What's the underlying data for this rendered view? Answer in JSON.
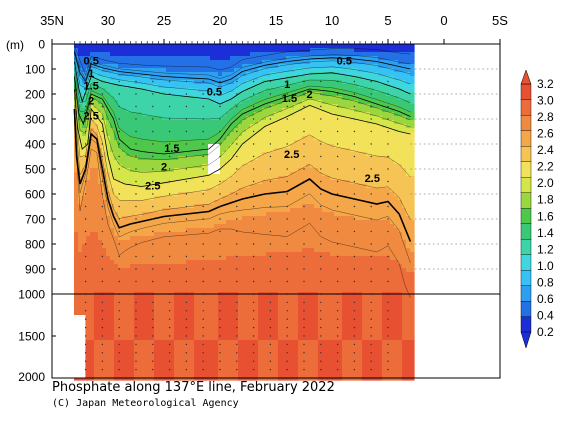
{
  "title": "Phosphate along 137°E line, February 2022",
  "credit": "(C) Japan Meteorological Agency",
  "chart_data": {
    "type": "heatmap",
    "depth_unit_label": "(m)",
    "latitude_ticks": [
      "35N",
      "30",
      "25",
      "20",
      "15",
      "10",
      "5",
      "0",
      "5S"
    ],
    "latitude_range": [
      35,
      -5
    ],
    "latitude_data_extent": [
      33,
      3
    ],
    "depth_ticks_upper": [
      "0",
      "100",
      "200",
      "300",
      "400",
      "500",
      "600",
      "700",
      "800",
      "900",
      "1000"
    ],
    "depth_ticks_lower": [
      "1500",
      "2000"
    ],
    "depth_range": [
      0,
      2000
    ],
    "depth_axis_break_at": 1000,
    "colorbar_labels": [
      "0.2",
      "0.4",
      "0.6",
      "0.8",
      "1.0",
      "1.2",
      "1.4",
      "1.6",
      "1.8",
      "2.0",
      "2.2",
      "2.4",
      "2.6",
      "2.8",
      "3.0",
      "3.2"
    ],
    "colorbar_colors": [
      "#1b2ed8",
      "#2470e6",
      "#2d9ff0",
      "#36c2f4",
      "#3fd6e0",
      "#3cd4a8",
      "#38c878",
      "#4ec84a",
      "#9ad63e",
      "#d4e64a",
      "#f2e25a",
      "#f6c454",
      "#f4a648",
      "#f08a40",
      "#ec6c3a",
      "#e85032"
    ],
    "contour_labels": [
      {
        "text": "0.5",
        "lat": 31.5,
        "depth": 65
      },
      {
        "text": "1",
        "lat": 31.5,
        "depth": 115
      },
      {
        "text": "1.5",
        "lat": 31.5,
        "depth": 165
      },
      {
        "text": "2",
        "lat": 31.5,
        "depth": 225
      },
      {
        "text": "2.5",
        "lat": 31.5,
        "depth": 285
      },
      {
        "text": "0.5",
        "lat": 20.5,
        "depth": 190
      },
      {
        "text": "1.5",
        "lat": 24.3,
        "depth": 415
      },
      {
        "text": "2",
        "lat": 25,
        "depth": 490
      },
      {
        "text": "2.5",
        "lat": 26,
        "depth": 565
      },
      {
        "text": "1",
        "lat": 14,
        "depth": 160
      },
      {
        "text": "1.5",
        "lat": 13.8,
        "depth": 215
      },
      {
        "text": "2",
        "lat": 12,
        "depth": 200
      },
      {
        "text": "2.5",
        "lat": 13.6,
        "depth": 440
      },
      {
        "text": "0.5",
        "lat": 8.9,
        "depth": 65
      },
      {
        "text": "2.5",
        "lat": 6.4,
        "depth": 535
      }
    ],
    "contours": [
      {
        "level": 0.5,
        "points": [
          [
            33,
            30
          ],
          [
            32.5,
            115
          ],
          [
            32,
            150
          ],
          [
            31.5,
            80
          ],
          [
            30.5,
            95
          ],
          [
            29,
            110
          ],
          [
            27,
            120
          ],
          [
            25,
            130
          ],
          [
            23,
            135
          ],
          [
            21,
            140
          ],
          [
            20,
            155
          ],
          [
            19,
            140
          ],
          [
            18,
            110
          ],
          [
            16,
            85
          ],
          [
            14,
            70
          ],
          [
            12,
            60
          ],
          [
            10,
            55
          ],
          [
            8,
            60
          ],
          [
            6,
            70
          ],
          [
            4,
            90
          ],
          [
            3,
            100
          ]
        ]
      },
      {
        "level": 1.0,
        "points": [
          [
            33,
            70
          ],
          [
            32.6,
            180
          ],
          [
            32.3,
            230
          ],
          [
            31.5,
            130
          ],
          [
            30.5,
            150
          ],
          [
            29,
            165
          ],
          [
            27,
            180
          ],
          [
            25,
            200
          ],
          [
            23,
            210
          ],
          [
            21,
            220
          ],
          [
            20,
            240
          ],
          [
            19,
            220
          ],
          [
            18,
            190
          ],
          [
            16,
            150
          ],
          [
            14,
            135
          ],
          [
            12,
            120
          ],
          [
            10,
            115
          ],
          [
            8,
            130
          ],
          [
            6,
            150
          ],
          [
            4,
            180
          ],
          [
            3,
            200
          ]
        ]
      },
      {
        "level": 1.5,
        "points": [
          [
            33,
            130
          ],
          [
            32.6,
            280
          ],
          [
            32.2,
            320
          ],
          [
            31.5,
            200
          ],
          [
            30.5,
            220
          ],
          [
            29.5,
            300
          ],
          [
            29,
            380
          ],
          [
            28,
            420
          ],
          [
            27,
            430
          ],
          [
            25,
            440
          ],
          [
            23,
            430
          ],
          [
            21,
            420
          ],
          [
            20,
            380
          ],
          [
            19,
            320
          ],
          [
            18,
            280
          ],
          [
            16,
            240
          ],
          [
            14,
            210
          ],
          [
            12,
            180
          ],
          [
            10,
            190
          ],
          [
            8,
            210
          ],
          [
            6,
            240
          ],
          [
            4,
            270
          ],
          [
            3,
            290
          ]
        ]
      },
      {
        "level": 2.0,
        "points": [
          [
            33,
            180
          ],
          [
            32.7,
            340
          ],
          [
            32.3,
            420
          ],
          [
            31.8,
            400
          ],
          [
            31.5,
            260
          ],
          [
            30.5,
            320
          ],
          [
            30,
            450
          ],
          [
            29.5,
            540
          ],
          [
            28.5,
            560
          ],
          [
            27,
            570
          ],
          [
            25,
            555
          ],
          [
            23,
            540
          ],
          [
            21,
            525
          ],
          [
            20,
            500
          ],
          [
            19,
            460
          ],
          [
            18,
            400
          ],
          [
            16,
            330
          ],
          [
            14,
            290
          ],
          [
            12,
            245
          ],
          [
            10,
            280
          ],
          [
            8,
            300
          ],
          [
            6,
            320
          ],
          [
            4,
            350
          ],
          [
            3,
            360
          ]
        ]
      },
      {
        "level": 2.5,
        "points": [
          [
            33,
            260
          ],
          [
            32.8,
            450
          ],
          [
            32.5,
            560
          ],
          [
            32,
            500
          ],
          [
            31.5,
            360
          ],
          [
            31,
            380
          ],
          [
            30.5,
            500
          ],
          [
            30,
            620
          ],
          [
            29.5,
            690
          ],
          [
            29,
            735
          ],
          [
            28,
            720
          ],
          [
            27,
            710
          ],
          [
            25,
            690
          ],
          [
            23,
            680
          ],
          [
            21,
            670
          ],
          [
            20,
            650
          ],
          [
            18,
            620
          ],
          [
            16,
            600
          ],
          [
            14,
            590
          ],
          [
            12,
            540
          ],
          [
            11,
            580
          ],
          [
            10,
            600
          ],
          [
            8,
            620
          ],
          [
            6,
            640
          ],
          [
            5,
            630
          ],
          [
            4,
            680
          ],
          [
            3,
            790
          ]
        ]
      }
    ]
  }
}
